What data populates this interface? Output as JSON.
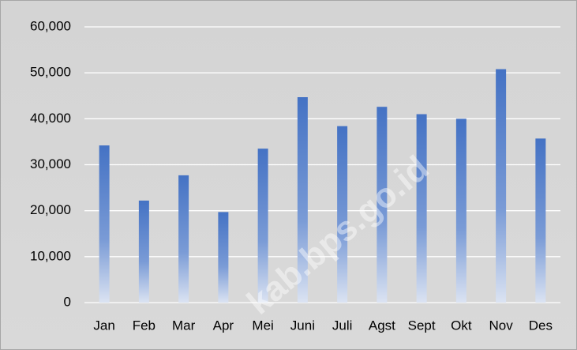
{
  "chart_data": {
    "type": "bar",
    "categories": [
      "Jan",
      "Feb",
      "Mar",
      "Apr",
      "Mei",
      "Juni",
      "Juli",
      "Agst",
      "Sept",
      "Okt",
      "Nov",
      "Des"
    ],
    "values": [
      34200,
      22200,
      27700,
      19700,
      33500,
      44700,
      38400,
      42600,
      41000,
      40000,
      50800,
      35700
    ],
    "color": "#4472c4",
    "ylim": [
      0,
      60000
    ],
    "yticks": [
      0,
      {
        "value": 10000,
        "label": "10,000"
      },
      {
        "value": 20000,
        "label": "20,000"
      },
      {
        "value": 30000,
        "label": "30,000"
      },
      {
        "value": 40000,
        "label": "40,000"
      },
      {
        "value": 50000,
        "label": "50,000"
      },
      {
        "value": 60000,
        "label": "60,000"
      }
    ],
    "grid": true,
    "watermark": "kab.bps.go.id"
  }
}
